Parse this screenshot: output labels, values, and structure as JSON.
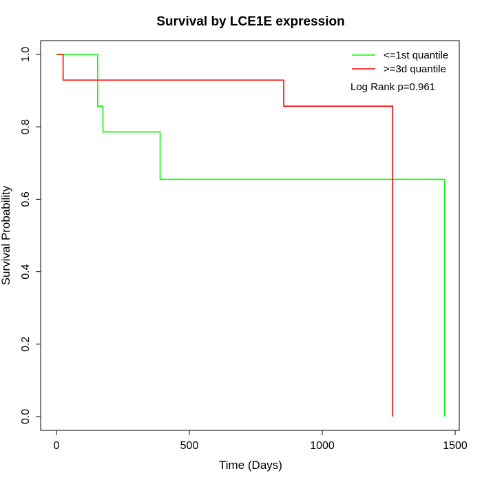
{
  "chart_data": {
    "type": "line",
    "title": "Survival by LCE1E expression",
    "xlabel": "Time (Days)",
    "ylabel": "Survival Probability",
    "xlim": [
      0,
      1500
    ],
    "ylim": [
      0,
      1
    ],
    "x_ticks": [
      "0",
      "500",
      "1000",
      "1500"
    ],
    "y_ticks": [
      "0.0",
      "0.2",
      "0.4",
      "0.6",
      "0.8",
      "1.0"
    ],
    "grid": false,
    "legend_position": "top-right",
    "annotation": "Log Rank p=0.961",
    "series": [
      {
        "name": "<=1st quantile",
        "color": "#00ff00",
        "step": true,
        "x": [
          0,
          130,
          155,
          175,
          390,
          1360,
          1460,
          1460
        ],
        "y": [
          1.0,
          1.0,
          0.857,
          0.786,
          0.655,
          0.655,
          0.327,
          0.0
        ]
      },
      {
        "name": ">=3d quantile",
        "color": "#ff0000",
        "step": true,
        "x": [
          0,
          25,
          300,
          855,
          1265,
          1265
        ],
        "y": [
          1.0,
          0.929,
          0.929,
          0.857,
          0.429,
          0.0
        ]
      }
    ]
  }
}
